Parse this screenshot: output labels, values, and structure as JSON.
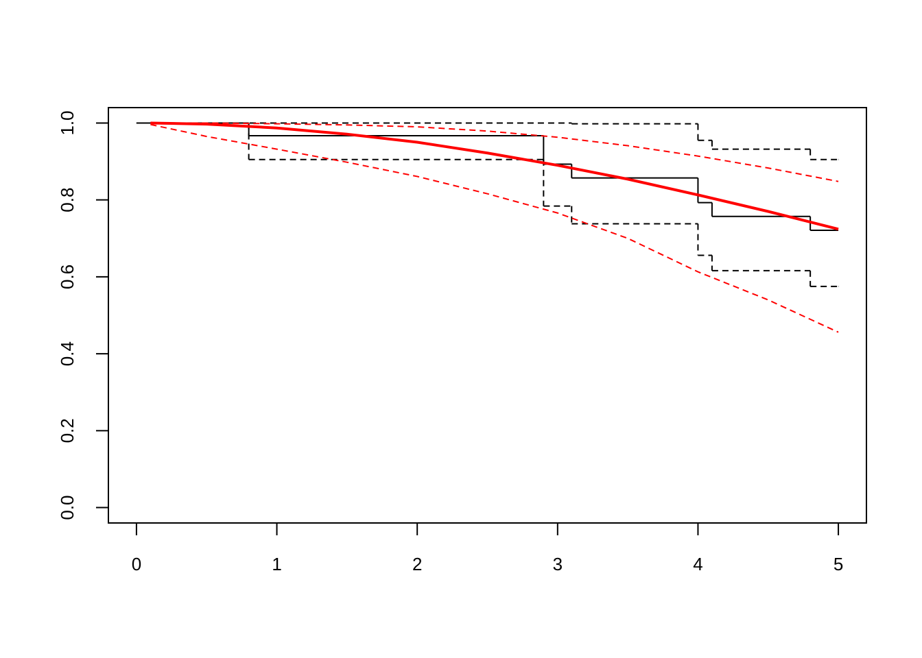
{
  "chart_data": {
    "type": "line",
    "xlim": [
      -0.2,
      5.2
    ],
    "ylim": [
      -0.04,
      1.04
    ],
    "xticks": [
      0,
      1,
      2,
      3,
      4,
      5
    ],
    "yticks": [
      {
        "value": 0,
        "label": "0.0"
      },
      0.2,
      0.4,
      0.6,
      0.8,
      {
        "value": 1,
        "label": "1.0"
      }
    ],
    "series": [
      {
        "color": "#000000",
        "dashed": false,
        "width": 2,
        "step": true,
        "x": [
          0,
          0.8,
          2.9,
          3.1,
          4.0,
          4.1,
          4.8,
          5
        ],
        "values": [
          1.0,
          0.967,
          0.893,
          0.857,
          0.793,
          0.757,
          0.721,
          0.721
        ]
      },
      {
        "color": "#000000",
        "dashed": true,
        "width": 2,
        "step": true,
        "x": [
          0,
          3.1,
          4.0,
          4.1,
          4.8,
          5
        ],
        "values": [
          1.0,
          0.998,
          0.955,
          0.932,
          0.905,
          0.905
        ]
      },
      {
        "color": "#000000",
        "dashed": true,
        "width": 2,
        "step": true,
        "x": [
          0,
          0.8,
          2.9,
          3.1,
          4.0,
          4.1,
          4.8,
          5
        ],
        "values": [
          1.0,
          0.905,
          0.784,
          0.738,
          0.656,
          0.616,
          0.575,
          0.575
        ]
      },
      {
        "color": "#ff0000",
        "dashed": false,
        "width": 4,
        "step": false,
        "x": [
          0.1,
          0.5,
          1,
          1.5,
          2,
          2.5,
          3,
          3.5,
          4,
          4.5,
          5
        ],
        "values": [
          1.0,
          0.997,
          0.987,
          0.971,
          0.95,
          0.922,
          0.89,
          0.854,
          0.813,
          0.77,
          0.724
        ]
      },
      {
        "color": "#ff0000",
        "dashed": true,
        "width": 2,
        "step": false,
        "x": [
          0.1,
          0.5,
          1,
          1.5,
          2,
          2.5,
          3,
          3.5,
          4,
          4.5,
          5
        ],
        "values": [
          1.0,
          1.0,
          0.998,
          0.995,
          0.99,
          0.979,
          0.963,
          0.941,
          0.914,
          0.883,
          0.848
        ]
      },
      {
        "color": "#ff0000",
        "dashed": true,
        "width": 2,
        "step": false,
        "x": [
          0.1,
          0.5,
          1,
          1.5,
          2,
          2.5,
          3,
          3.5,
          4,
          4.5,
          5
        ],
        "values": [
          0.996,
          0.965,
          0.932,
          0.898,
          0.861,
          0.816,
          0.766,
          0.7,
          0.613,
          0.54,
          0.456
        ]
      }
    ]
  }
}
